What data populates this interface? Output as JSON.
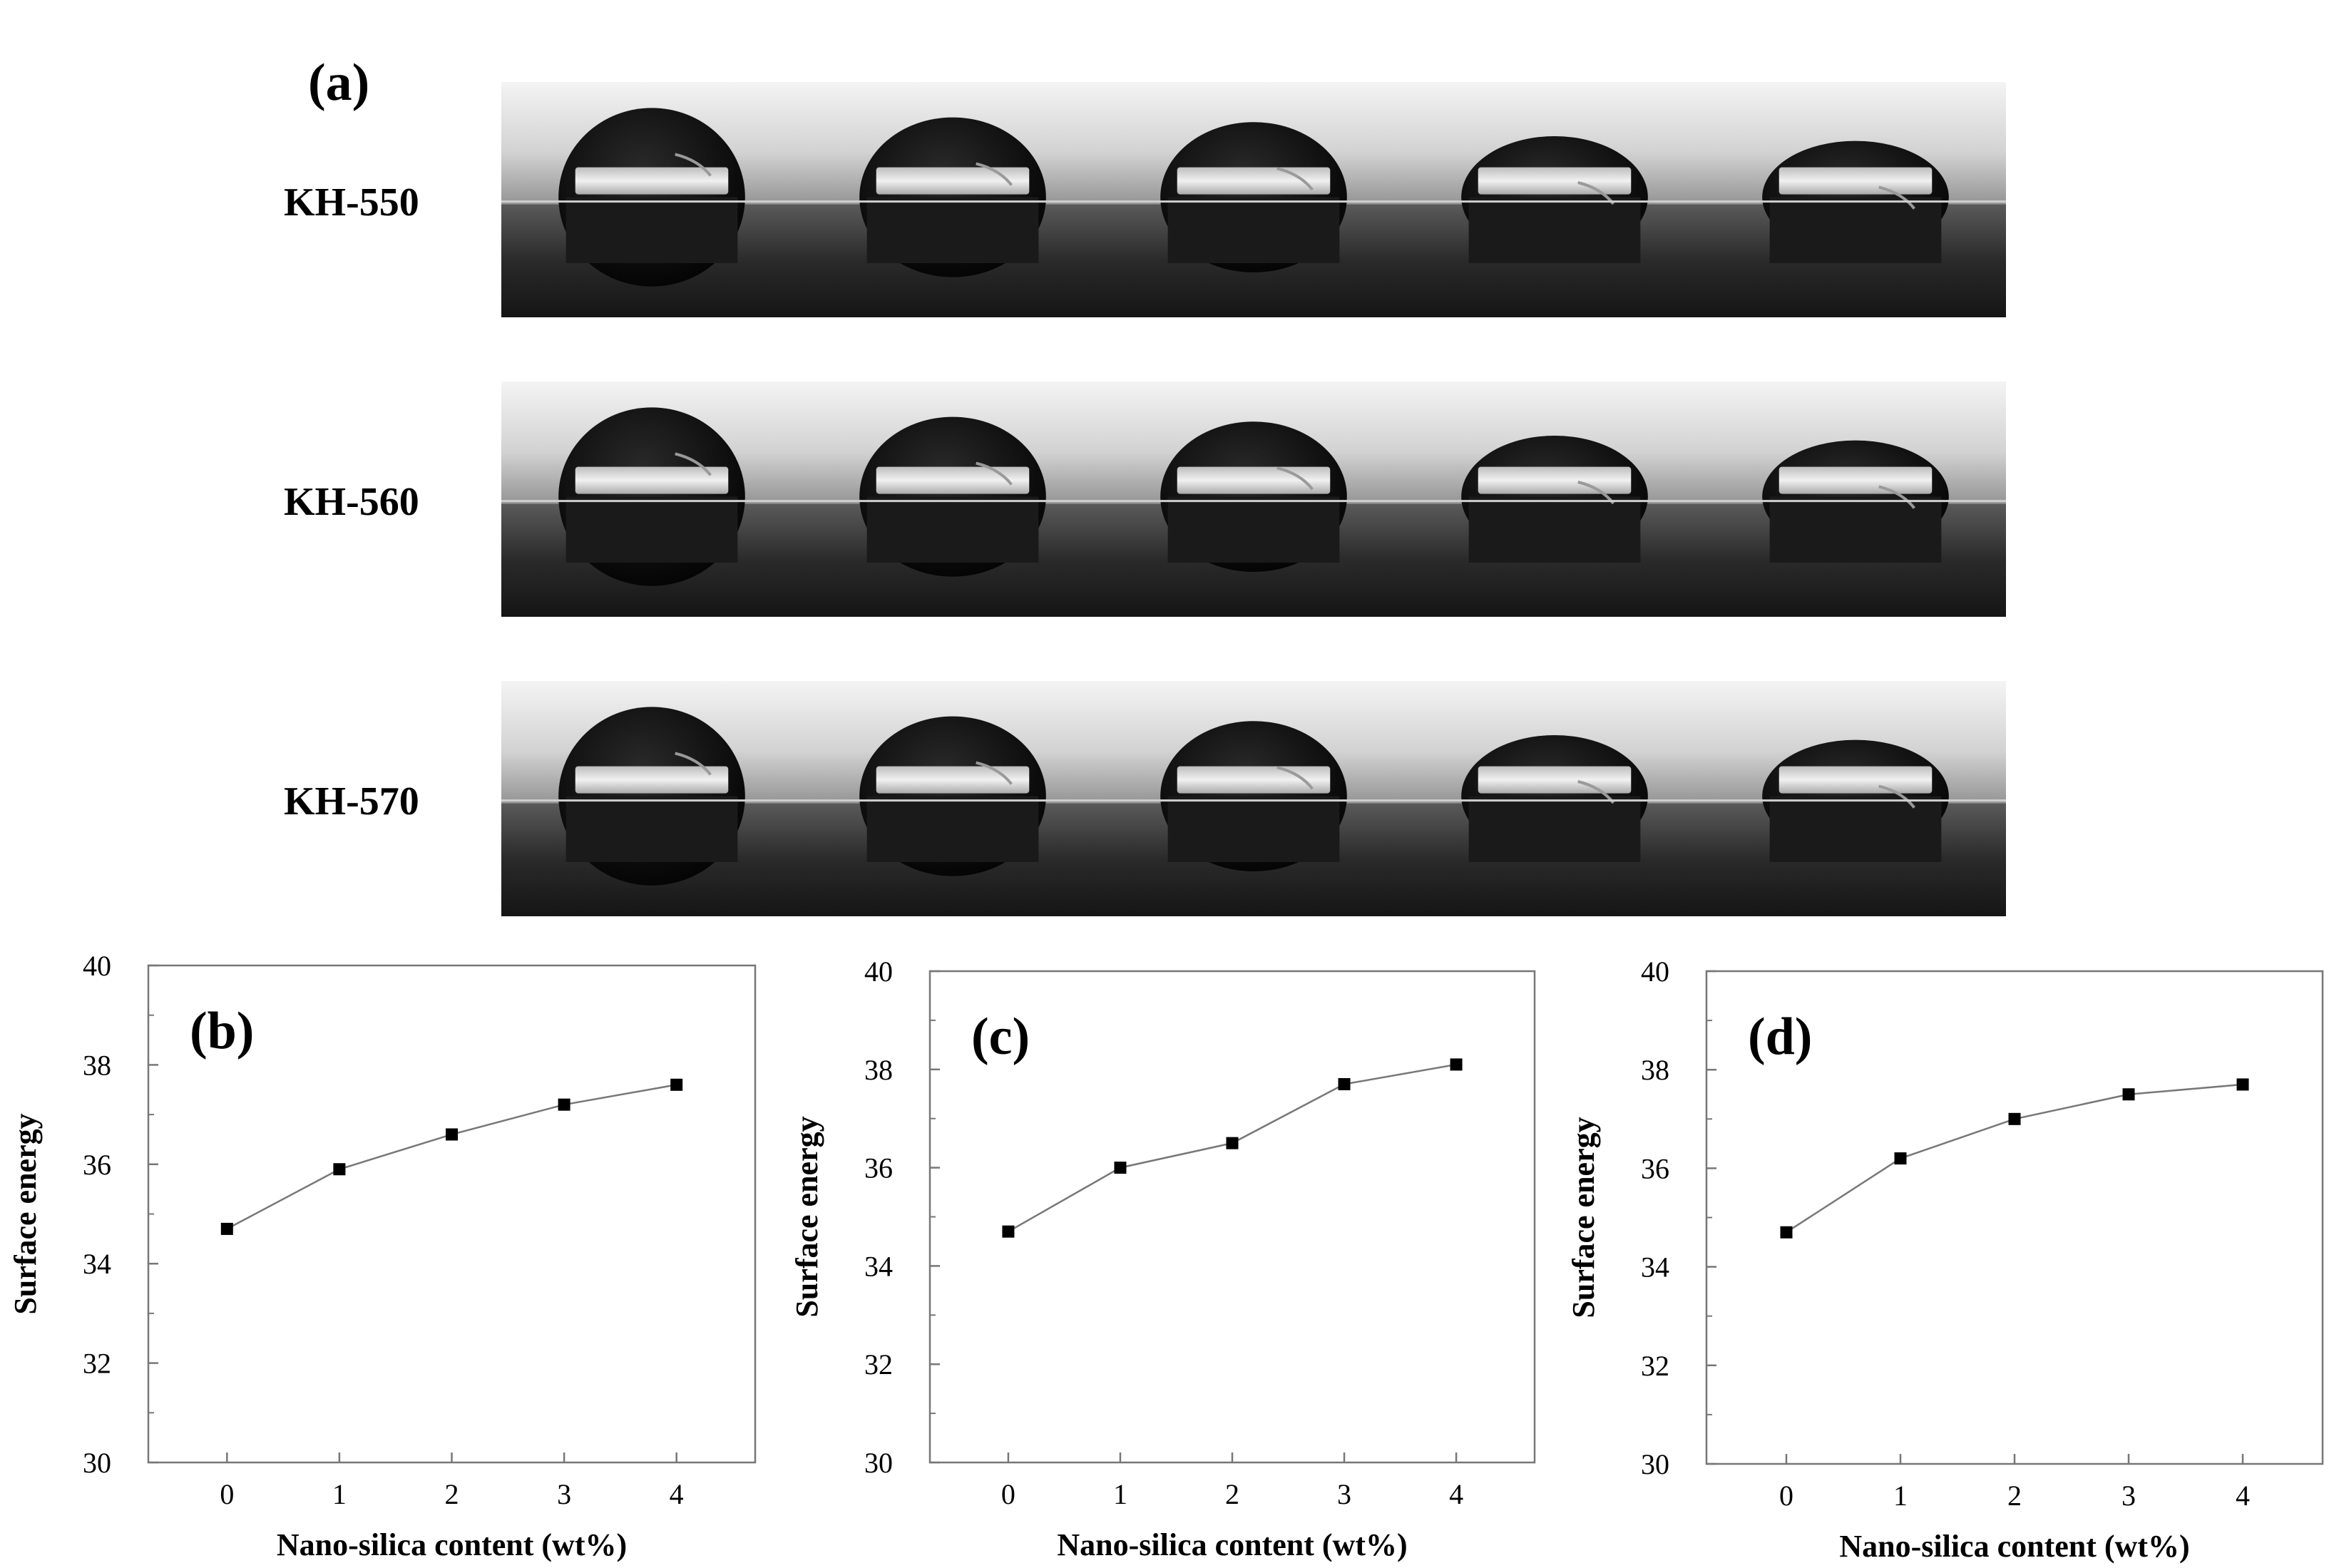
{
  "photo_panel": {
    "label": "(a)",
    "rows": [
      {
        "label": "KH-550",
        "count": 5
      },
      {
        "label": "KH-560",
        "count": 5
      },
      {
        "label": "KH-570",
        "count": 5
      }
    ]
  },
  "chart_data": [
    {
      "panel": "(b)",
      "type": "line",
      "xlabel": "Nano-silica content (wt%)",
      "ylabel": "Surface energy",
      "xlim": [
        -0.7,
        4.7
      ],
      "ylim": [
        30,
        40
      ],
      "x_ticks": [
        0,
        1,
        2,
        3,
        4
      ],
      "y_ticks": [
        30,
        32,
        34,
        36,
        38,
        40
      ],
      "x": [
        0,
        1,
        2,
        3,
        4
      ],
      "y": [
        34.7,
        35.9,
        36.6,
        37.2,
        37.6
      ],
      "marker": "square",
      "grid": false
    },
    {
      "panel": "(c)",
      "type": "line",
      "xlabel": "Nano-silica content (wt%)",
      "ylabel": "Surface energy",
      "xlim": [
        -0.7,
        4.7
      ],
      "ylim": [
        30,
        40
      ],
      "x_ticks": [
        0,
        1,
        2,
        3,
        4
      ],
      "y_ticks": [
        30,
        32,
        34,
        36,
        38,
        40
      ],
      "x": [
        0,
        1,
        2,
        3,
        4
      ],
      "y": [
        34.7,
        36.0,
        36.5,
        37.7,
        38.1
      ],
      "marker": "square",
      "grid": false
    },
    {
      "panel": "(d)",
      "type": "line",
      "xlabel": "Nano-silica content (wt%)",
      "ylabel": "Surface energy",
      "xlim": [
        -0.7,
        4.7
      ],
      "ylim": [
        30,
        40
      ],
      "x_ticks": [
        0,
        1,
        2,
        3,
        4
      ],
      "y_ticks": [
        30,
        32,
        34,
        36,
        38,
        40
      ],
      "x": [
        0,
        1,
        2,
        3,
        4
      ],
      "y": [
        34.7,
        36.2,
        37.0,
        37.5,
        37.7
      ],
      "marker": "square",
      "grid": false
    }
  ]
}
